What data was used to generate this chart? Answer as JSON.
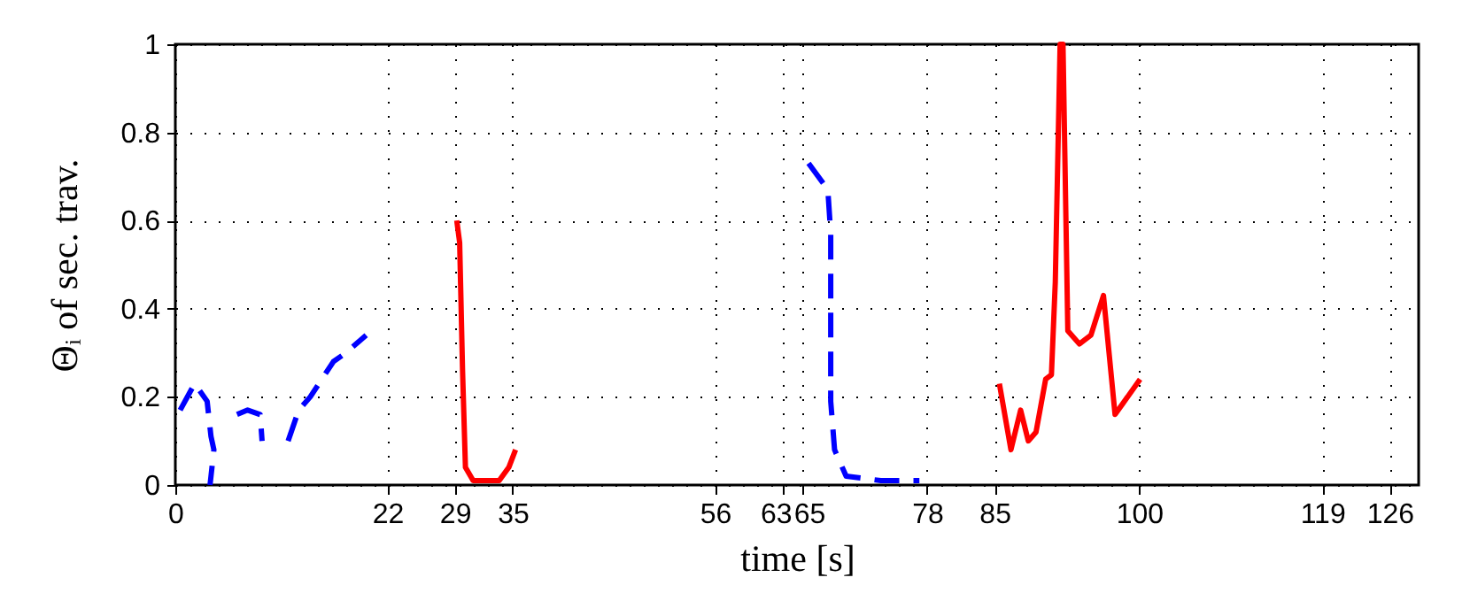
{
  "chart_data": {
    "type": "line",
    "xlabel": "time [s]",
    "ylabel": "Θᵢ of sec. trav.",
    "xlim": [
      0,
      129
    ],
    "ylim": [
      0,
      1
    ],
    "xticks": [
      0,
      22,
      29,
      35,
      56,
      63,
      65,
      78,
      85,
      100,
      119,
      126
    ],
    "yticks": [
      0,
      0.2,
      0.4,
      0.6,
      0.8,
      1
    ],
    "grid": true,
    "legend": false,
    "series": [
      {
        "color": "#0000ff",
        "line_style": "dashed",
        "x": [
          0.5,
          2.0,
          3.3,
          3.7,
          4.0,
          3.6,
          null,
          6.4,
          7.5,
          8.8,
          9.0,
          null,
          11.7,
          12.8,
          14.0,
          16.4,
          17.7,
          19.8,
          null,
          65.7,
          67.7,
          68.0,
          68.0,
          68.4,
          69.6,
          73.2,
          77.2
        ],
        "values": [
          0.17,
          0.23,
          0.19,
          0.11,
          0.08,
          0.0,
          null,
          0.16,
          0.17,
          0.16,
          0.1,
          null,
          0.1,
          0.17,
          0.2,
          0.28,
          0.3,
          0.34,
          null,
          0.73,
          0.67,
          0.57,
          0.19,
          0.08,
          0.02,
          0.01,
          0.01
        ]
      },
      {
        "color": "#ff0000",
        "line_style": "solid",
        "x": [
          29.2,
          29.5,
          29.8,
          30.1,
          30.9,
          33.6,
          34.6,
          35.3,
          null,
          85.5,
          86.7,
          87.7,
          88.5,
          89.3,
          90.3,
          90.9,
          91.3,
          91.8,
          92.1,
          92.6,
          93.8,
          95.0,
          96.3,
          97.5,
          100.1
        ],
        "values": [
          0.6,
          0.55,
          0.26,
          0.04,
          0.01,
          0.01,
          0.04,
          0.08,
          null,
          0.23,
          0.08,
          0.17,
          0.1,
          0.12,
          0.24,
          0.25,
          0.46,
          1.0,
          1.0,
          0.35,
          0.32,
          0.34,
          0.43,
          0.16,
          0.24
        ]
      }
    ]
  }
}
